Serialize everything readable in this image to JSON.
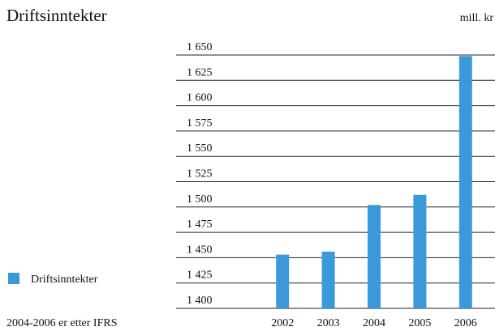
{
  "chart_data": {
    "type": "bar",
    "title": "Driftsinntekter",
    "y_label": "mill. kr",
    "note": "2004-2006 er etter IFRS",
    "categories": [
      "2002",
      "2003",
      "2004",
      "2005",
      "2006"
    ],
    "series": [
      {
        "name": "Driftsinntekter",
        "color": "#3a9ad9",
        "values": [
          1453,
          1456,
          1502,
          1512,
          1649
        ]
      }
    ],
    "ylim": [
      1400,
      1650
    ],
    "yticks": [
      {
        "value": 1400,
        "label": "1 400"
      },
      {
        "value": 1425,
        "label": "1 425"
      },
      {
        "value": 1450,
        "label": "1 450"
      },
      {
        "value": 1475,
        "label": "1 475"
      },
      {
        "value": 1500,
        "label": "1 500"
      },
      {
        "value": 1525,
        "label": "1 525"
      },
      {
        "value": 1550,
        "label": "1 550"
      },
      {
        "value": 1575,
        "label": "1 575"
      },
      {
        "value": 1600,
        "label": "1 600"
      },
      {
        "value": 1625,
        "label": "1 625"
      },
      {
        "value": 1650,
        "label": "1 650"
      }
    ],
    "grid": true,
    "legend": "left"
  }
}
